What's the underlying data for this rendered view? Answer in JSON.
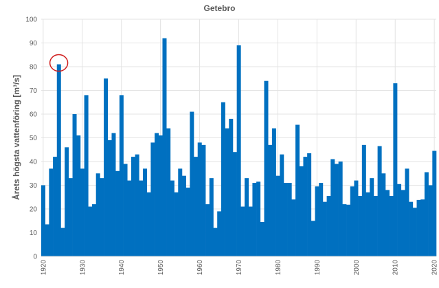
{
  "chart_data": {
    "type": "bar",
    "title": "Getebro",
    "xlabel": "",
    "ylabel": "Årets högsta vattenföring [m³/s]",
    "ylim": [
      0,
      100
    ],
    "yticks": [
      0,
      10,
      20,
      30,
      40,
      50,
      60,
      70,
      80,
      90,
      100
    ],
    "xticks": [
      1920,
      1930,
      1940,
      1950,
      1960,
      1970,
      1980,
      1990,
      2000,
      2010,
      2020
    ],
    "grid": true,
    "bar_color": "#0070C0",
    "annotation": {
      "type": "circle",
      "year": 1924,
      "color": "#D02020"
    },
    "x": [
      1920,
      1921,
      1922,
      1923,
      1924,
      1925,
      1926,
      1927,
      1928,
      1929,
      1930,
      1931,
      1932,
      1933,
      1934,
      1935,
      1936,
      1937,
      1938,
      1939,
      1940,
      1941,
      1942,
      1943,
      1944,
      1945,
      1946,
      1947,
      1948,
      1949,
      1950,
      1951,
      1952,
      1953,
      1954,
      1955,
      1956,
      1957,
      1958,
      1959,
      1960,
      1961,
      1962,
      1963,
      1964,
      1965,
      1966,
      1967,
      1968,
      1969,
      1970,
      1971,
      1972,
      1973,
      1974,
      1975,
      1976,
      1977,
      1978,
      1979,
      1980,
      1981,
      1982,
      1983,
      1984,
      1985,
      1986,
      1987,
      1988,
      1989,
      1990,
      1991,
      1992,
      1993,
      1994,
      1995,
      1996,
      1997,
      1998,
      1999,
      2000,
      2001,
      2002,
      2003,
      2004,
      2005,
      2006,
      2007,
      2008,
      2009,
      2010,
      2011,
      2012,
      2013,
      2014,
      2015,
      2016,
      2017,
      2018,
      2019,
      2020
    ],
    "values": [
      30,
      13.5,
      37,
      42,
      81,
      12,
      46,
      33,
      60,
      51,
      37,
      68,
      21,
      22,
      35,
      33,
      75,
      49,
      52,
      36,
      68,
      39,
      32,
      42,
      43,
      32,
      37,
      27,
      48,
      52,
      51,
      92,
      54,
      32,
      27,
      37,
      34,
      29,
      61,
      42,
      48,
      47,
      22,
      33,
      12,
      19,
      65,
      54,
      58,
      44,
      89,
      21,
      33,
      21,
      31,
      31.5,
      14.5,
      74,
      47,
      54,
      34,
      43,
      31,
      31,
      24,
      55.5,
      38,
      42,
      43.5,
      15,
      29.5,
      31,
      23,
      25.5,
      41,
      39,
      40,
      22,
      21.8,
      29.5,
      32,
      25.5,
      47,
      27,
      33,
      25.5,
      46.5,
      35,
      28,
      25.5,
      73,
      30.5,
      28,
      37,
      23,
      20.5,
      23.8,
      24,
      35.5,
      30,
      44.5
    ]
  }
}
